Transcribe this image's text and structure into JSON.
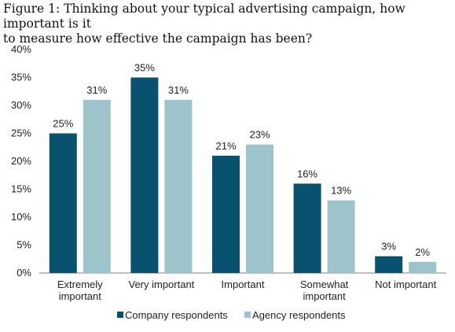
{
  "figure": {
    "title_line1": "Figure 1: Thinking about your typical advertising campaign, how important is it",
    "title_line2": "to measure how effective the campaign has been?"
  },
  "chart_data": {
    "type": "bar",
    "categories": [
      [
        "Extremely",
        "important"
      ],
      [
        "Very important"
      ],
      [
        "Important"
      ],
      [
        "Somewhat",
        "important"
      ],
      [
        "Not important"
      ]
    ],
    "series": [
      {
        "name": "Company respondents",
        "color": "#08526f",
        "values": [
          25,
          35,
          21,
          16,
          3
        ]
      },
      {
        "name": "Agency respondents",
        "color": "#9dc3cb",
        "values": [
          31,
          31,
          23,
          13,
          2
        ]
      }
    ],
    "ylim": [
      0,
      40
    ],
    "yticks": [
      0,
      5,
      10,
      15,
      20,
      25,
      30,
      35,
      40
    ],
    "value_suffix": "%",
    "legend_position": "bottom",
    "grid": false
  }
}
